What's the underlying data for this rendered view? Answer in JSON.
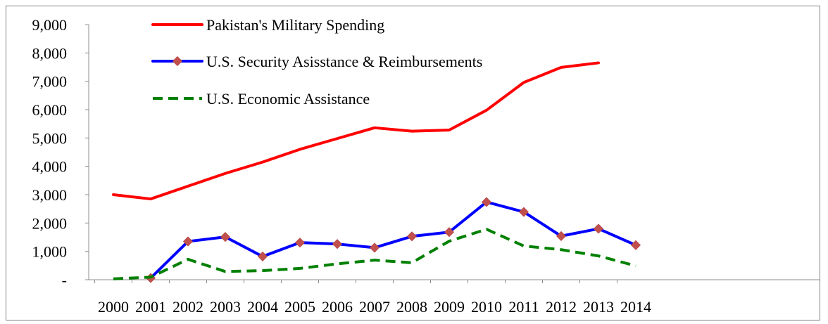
{
  "chart_data": {
    "type": "line",
    "title": "",
    "xlabel": "",
    "ylabel": "",
    "categories": [
      "2000",
      "2001",
      "2002",
      "2003",
      "2004",
      "2005",
      "2006",
      "2007",
      "2008",
      "2009",
      "2010",
      "2011",
      "2012",
      "2013",
      "2014"
    ],
    "ylim": [
      0,
      9000
    ],
    "yticks": [
      0,
      1000,
      2000,
      3000,
      4000,
      5000,
      6000,
      7000,
      8000,
      9000
    ],
    "ytick_labels": [
      "-",
      "1,000",
      "2,000",
      "3,000",
      "4,000",
      "5,000",
      "6,000",
      "7,000",
      "8,000",
      "9,000"
    ],
    "grid": false,
    "legend_position": "top",
    "series": [
      {
        "name": "Pakistan's Military Spending",
        "color": "#ff0000",
        "line_style": "solid",
        "marker": "none",
        "values": [
          3000,
          2850,
          3300,
          3750,
          4150,
          4600,
          4980,
          5360,
          5240,
          5280,
          5980,
          6960,
          7490,
          7650,
          null
        ]
      },
      {
        "name": "U.S. Security Asisstance & Reimbursements",
        "color": "#0000ff",
        "marker_color": "#c0504d",
        "line_style": "solid",
        "marker": "diamond",
        "values": [
          null,
          60,
          1350,
          1510,
          820,
          1310,
          1260,
          1130,
          1530,
          1680,
          2740,
          2390,
          1540,
          1800,
          1220
        ]
      },
      {
        "name": "U.S. Economic Assistance",
        "color": "#008000",
        "line_style": "dashed",
        "marker": "none",
        "values": [
          30,
          90,
          720,
          290,
          320,
          400,
          560,
          690,
          600,
          1360,
          1780,
          1190,
          1060,
          840,
          490
        ]
      }
    ]
  }
}
